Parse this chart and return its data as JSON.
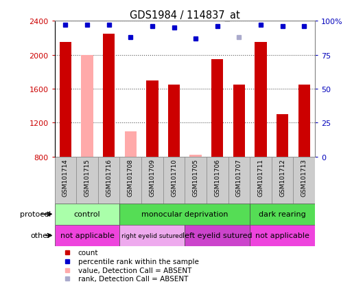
{
  "title": "GDS1984 / 114837_at",
  "samples": [
    "GSM101714",
    "GSM101715",
    "GSM101716",
    "GSM101708",
    "GSM101709",
    "GSM101710",
    "GSM101705",
    "GSM101706",
    "GSM101707",
    "GSM101711",
    "GSM101712",
    "GSM101713"
  ],
  "bar_values": [
    2150,
    null,
    2250,
    null,
    1700,
    1650,
    null,
    1950,
    1650,
    2150,
    1300,
    1650
  ],
  "bar_absent_values": [
    null,
    2000,
    null,
    1100,
    null,
    null,
    820,
    null,
    null,
    null,
    null,
    null
  ],
  "percentile_values": [
    97,
    97,
    97,
    88,
    96,
    95,
    87,
    96,
    null,
    97,
    96,
    96
  ],
  "percentile_absent_values": [
    null,
    null,
    null,
    null,
    null,
    null,
    null,
    null,
    88,
    null,
    null,
    null
  ],
  "ylim_left": [
    800,
    2400
  ],
  "ylim_right": [
    0,
    100
  ],
  "yticks_left": [
    800,
    1200,
    1600,
    2000,
    2400
  ],
  "yticks_right": [
    0,
    25,
    50,
    75,
    100
  ],
  "bar_color": "#cc0000",
  "bar_absent_color": "#ffaaaa",
  "dot_color": "#0000cc",
  "dot_absent_color": "#aaaacc",
  "protocol_groups": [
    {
      "label": "control",
      "start": 0,
      "end": 3,
      "color": "#aaffaa"
    },
    {
      "label": "monocular deprivation",
      "start": 3,
      "end": 9,
      "color": "#55dd55"
    },
    {
      "label": "dark rearing",
      "start": 9,
      "end": 12,
      "color": "#55dd55"
    }
  ],
  "other_groups": [
    {
      "label": "not applicable",
      "start": 0,
      "end": 3,
      "color": "#ee44dd"
    },
    {
      "label": "right eyelid sutured",
      "start": 3,
      "end": 6,
      "color": "#eeaaee"
    },
    {
      "label": "left eyelid sutured",
      "start": 6,
      "end": 9,
      "color": "#cc44cc"
    },
    {
      "label": "not applicable",
      "start": 9,
      "end": 12,
      "color": "#ee44dd"
    }
  ],
  "legend_items": [
    {
      "label": "count",
      "color": "#cc0000"
    },
    {
      "label": "percentile rank within the sample",
      "color": "#0000cc"
    },
    {
      "label": "value, Detection Call = ABSENT",
      "color": "#ffaaaa"
    },
    {
      "label": "rank, Detection Call = ABSENT",
      "color": "#aaaacc"
    }
  ],
  "grid_color": "#555555",
  "bg_color": "#ffffff",
  "left_axis_color": "#cc0000",
  "right_axis_color": "#0000bb",
  "sample_bg_color": "#cccccc"
}
